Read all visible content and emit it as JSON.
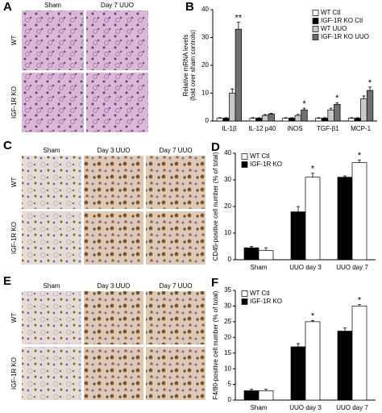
{
  "panels": {
    "a": {
      "label": "A",
      "columns": [
        "Sham",
        "Day 7 UUO"
      ],
      "rows": [
        "WT",
        "IGF-1R KO"
      ]
    },
    "c": {
      "label": "C",
      "columns": [
        "Sham",
        "Day 3 UUO",
        "Day 7 UUO"
      ],
      "rows": [
        "WT",
        "IGF-1R KO"
      ]
    },
    "e": {
      "label": "E",
      "columns": [
        "Sham",
        "Day 3 UUO",
        "Day 7 UUO"
      ],
      "rows": [
        "WT",
        "IGF-1R KO"
      ]
    }
  },
  "chart_data": [
    {
      "type": "bar",
      "panel_label": "B",
      "ylabel": [
        "Relative mRNA levels",
        "(fold over sham controls)"
      ],
      "categories": [
        "IL-1β",
        "IL-12 p40",
        "iNOS",
        "TGF-β1",
        "MCP-1"
      ],
      "series": [
        {
          "name": "WT Ctl",
          "color": "#ffffff",
          "values": [
            1,
            1,
            1,
            1,
            1
          ],
          "errors": [
            0.2,
            0.2,
            0.2,
            0.2,
            0.2
          ]
        },
        {
          "name": "IGF-1R KO Ctl",
          "color": "#000000",
          "values": [
            1,
            1,
            1,
            1,
            1
          ],
          "errors": [
            0.2,
            0.2,
            0.2,
            0.2,
            0.2
          ]
        },
        {
          "name": "WT UUO",
          "color": "#c8c8c8",
          "values": [
            10,
            2,
            2,
            4,
            8
          ],
          "errors": [
            1.5,
            0.3,
            0.4,
            0.6,
            1
          ]
        },
        {
          "name": "IGF-1R KO UUO",
          "color": "#707070",
          "values": [
            33,
            2.5,
            4,
            6,
            11
          ],
          "errors": [
            2.5,
            0.3,
            0.6,
            0.6,
            1.2
          ],
          "markers": [
            "**",
            null,
            "*",
            "*",
            "*"
          ]
        }
      ],
      "ylim": [
        0,
        40
      ],
      "yticks": [
        0,
        10,
        20,
        30,
        40
      ],
      "legend": "top-right"
    },
    {
      "type": "bar",
      "panel_label": "D",
      "ylabel": [
        "CD45-positive cell number (% of total)"
      ],
      "categories": [
        "Sham",
        "UUO day 3",
        "UUO day 7"
      ],
      "series": [
        {
          "name": "IGF-1R KO",
          "color": "#000000",
          "values": [
            4.5,
            18,
            31
          ],
          "errors": [
            0.5,
            2,
            0.5
          ]
        },
        {
          "name": "WT Ctl",
          "color": "#ffffff",
          "values": [
            3.5,
            31,
            36.5
          ],
          "errors": [
            1,
            1.5,
            1
          ],
          "markers": [
            null,
            "*",
            "*"
          ]
        }
      ],
      "ylim": [
        0,
        40
      ],
      "yticks": [
        0,
        10,
        20,
        30,
        40
      ],
      "legend": "top-left",
      "legend_order": [
        1,
        0
      ]
    },
    {
      "type": "bar",
      "panel_label": "F",
      "ylabel": [
        "F4/80-positive cell number (% of total)"
      ],
      "categories": [
        "Sham",
        "UUO day 3",
        "UUO day 7"
      ],
      "series": [
        {
          "name": "IGF-1R KO",
          "color": "#000000",
          "values": [
            3,
            17,
            22
          ],
          "errors": [
            0.5,
            1,
            1
          ]
        },
        {
          "name": "WT Ctl",
          "color": "#ffffff",
          "values": [
            3,
            25,
            30
          ],
          "errors": [
            0.5,
            0.4,
            0.5
          ],
          "markers": [
            null,
            "*",
            "*"
          ]
        }
      ],
      "ylim": [
        0,
        35
      ],
      "yticks": [
        0,
        5,
        10,
        15,
        20,
        25,
        30,
        35
      ],
      "legend": "top-left",
      "legend_order": [
        1,
        0
      ]
    }
  ]
}
